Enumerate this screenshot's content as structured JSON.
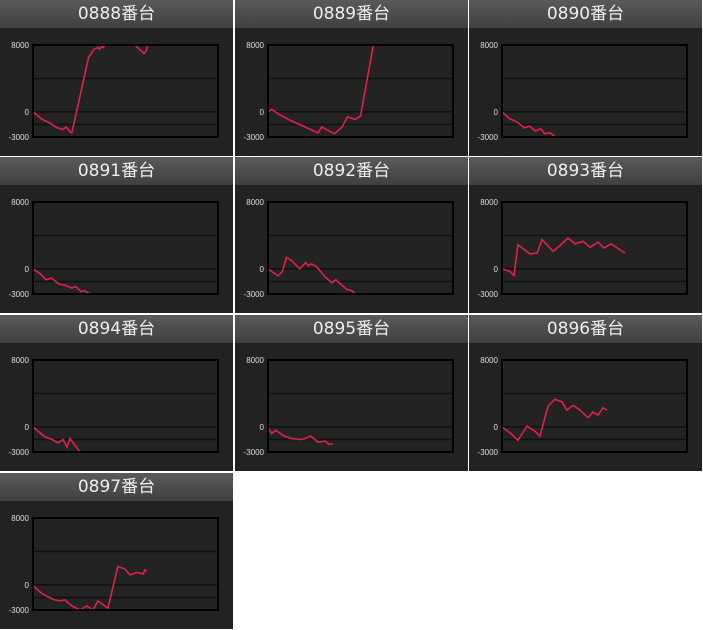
{
  "chart_data": [
    {
      "type": "line",
      "title": "0888番台",
      "ylim": [
        -3000,
        8000
      ],
      "xlim": [
        0,
        100
      ],
      "yticks": [
        "8000",
        "0",
        "-3000"
      ],
      "gridlines": [
        4000,
        0,
        -1500
      ],
      "color": "#e0204a",
      "x": [
        0,
        5,
        9,
        13,
        16,
        18,
        20,
        21,
        25,
        28,
        30,
        33,
        35,
        36,
        37,
        38,
        39,
        40,
        54,
        55,
        60,
        61,
        62
      ],
      "y": [
        0,
        -900,
        -1300,
        -1900,
        -2100,
        -1800,
        -2400,
        -2500,
        1500,
        4500,
        6500,
        7500,
        7700,
        7500,
        7800,
        7700,
        8000,
        9500,
        9500,
        8000,
        7000,
        7200,
        8000
      ]
    },
    {
      "type": "line",
      "title": "0889番台",
      "ylim": [
        -3000,
        8000
      ],
      "xlim": [
        0,
        100
      ],
      "yticks": [
        "8000",
        "0",
        "-3000"
      ],
      "gridlines": [
        4000,
        0,
        -1500
      ],
      "color": "#e0204a",
      "x": [
        0,
        2,
        6,
        12,
        17,
        22,
        27,
        29,
        33,
        36,
        40,
        43,
        47,
        50,
        57
      ],
      "y": [
        0,
        300,
        -300,
        -1000,
        -1500,
        -2000,
        -2500,
        -1800,
        -2300,
        -2600,
        -1800,
        -600,
        -900,
        -500,
        8000
      ]
    },
    {
      "type": "line",
      "title": "0890番台",
      "ylim": [
        -3000,
        8000
      ],
      "xlim": [
        0,
        100
      ],
      "yticks": [
        "8000",
        "0",
        "-3000"
      ],
      "gridlines": [
        4000,
        0,
        -1500
      ],
      "color": "#e0204a",
      "x": [
        0,
        4,
        8,
        12,
        15,
        18,
        21,
        23,
        26,
        29
      ],
      "y": [
        0,
        -800,
        -1200,
        -1900,
        -1700,
        -2300,
        -2000,
        -2600,
        -2500,
        -3000
      ]
    },
    {
      "type": "line",
      "title": "0891番台",
      "ylim": [
        -3000,
        8000
      ],
      "xlim": [
        0,
        100
      ],
      "yticks": [
        "8000",
        "0",
        "-3000"
      ],
      "gridlines": [
        4000,
        0,
        -1500
      ],
      "color": "#e0204a",
      "x": [
        0,
        4,
        7,
        10,
        14,
        18,
        21,
        23,
        26,
        28,
        31
      ],
      "y": [
        0,
        -600,
        -1300,
        -1100,
        -1800,
        -2000,
        -2300,
        -2100,
        -2700,
        -2600,
        -3000
      ]
    },
    {
      "type": "line",
      "title": "0892番台",
      "ylim": [
        -3000,
        8000
      ],
      "xlim": [
        0,
        100
      ],
      "yticks": [
        "8000",
        "0",
        "-3000"
      ],
      "gridlines": [
        4000,
        0,
        -1500
      ],
      "color": "#e0204a",
      "x": [
        0,
        5.4,
        7.8,
        10,
        12.7,
        17.2,
        20.4,
        21.9,
        23.5,
        26.2,
        30.7,
        34.4,
        36.7,
        42.5,
        45.2,
        47.6
      ],
      "y": [
        0,
        -840,
        -320,
        1360,
        1000,
        0,
        760,
        400,
        600,
        280,
        -920,
        -1640,
        -1320,
        -2440,
        -2600,
        -3000
      ]
    },
    {
      "type": "line",
      "title": "0893番台",
      "ylim": [
        -3000,
        8000
      ],
      "xlim": [
        0,
        100
      ],
      "yticks": [
        "8000",
        "0",
        "-3000"
      ],
      "gridlines": [
        4000,
        0,
        -1500
      ],
      "color": "#e0204a",
      "x": [
        0,
        4.3,
        6.5,
        8.6,
        15,
        19,
        21.6,
        27.6,
        31.4,
        35.7,
        39.5,
        43.8,
        47.6,
        51.9,
        55.1,
        58.9,
        66.5
      ],
      "y": [
        0,
        -300,
        -800,
        2900,
        1800,
        1900,
        3500,
        2100,
        2800,
        3700,
        3000,
        3300,
        2600,
        3200,
        2500,
        3000,
        1900
      ]
    },
    {
      "type": "line",
      "title": "0894番台",
      "ylim": [
        -3000,
        8000
      ],
      "xlim": [
        0,
        100
      ],
      "yticks": [
        "8000",
        "0",
        "-3000"
      ],
      "gridlines": [
        4000,
        0,
        -1500
      ],
      "color": "#e0204a",
      "x": [
        0,
        6.5,
        10.3,
        13.5,
        16.2,
        18.4,
        20,
        25.4
      ],
      "y": [
        0,
        -1200,
        -1500,
        -1900,
        -1500,
        -2400,
        -1400,
        -3000
      ]
    },
    {
      "type": "line",
      "title": "0895番台",
      "ylim": [
        -3000,
        8000
      ],
      "xlim": [
        0,
        100
      ],
      "yticks": [
        "8000",
        "0",
        "-3000"
      ],
      "gridlines": [
        4000,
        0,
        -1500
      ],
      "color": "#e0204a",
      "x": [
        0,
        2,
        4,
        9,
        13,
        17.6,
        20,
        23,
        27,
        31,
        33,
        35
      ],
      "y": [
        0,
        -800,
        -400,
        -1100,
        -1400,
        -1500,
        -1400,
        -1100,
        -1800,
        -1700,
        -2100,
        -2000
      ]
    },
    {
      "type": "line",
      "title": "0896番台",
      "ylim": [
        -3000,
        8000
      ],
      "xlim": [
        0,
        100
      ],
      "yticks": [
        "8000",
        "0",
        "-3000"
      ],
      "gridlines": [
        4000,
        0,
        -1500
      ],
      "color": "#e0204a",
      "x": [
        0,
        4.3,
        8.6,
        13.5,
        17.8,
        20.5,
        24.9,
        28.6,
        32.4,
        35.1,
        38.4,
        42.2,
        46.5,
        49.2,
        51.9,
        54.6,
        56.8
      ],
      "y": [
        0,
        -700,
        -1600,
        100,
        -500,
        -1100,
        2500,
        3300,
        3000,
        2000,
        2600,
        2000,
        1100,
        1800,
        1400,
        2300,
        2000
      ]
    },
    {
      "type": "line",
      "title": "0897番台",
      "ylim": [
        -3000,
        8000
      ],
      "xlim": [
        0,
        100
      ],
      "yticks": [
        "8000",
        "0",
        "-3000"
      ],
      "gridlines": [
        4000,
        0,
        -1500
      ],
      "color": "#e0204a",
      "x": [
        0,
        1,
        4,
        7.6,
        11.9,
        14.6,
        17.3,
        21,
        25.4,
        29.2,
        32.4,
        35.1,
        40.5,
        45.9,
        49.7,
        52.4,
        56.2,
        59.5,
        60.5,
        61.6
      ],
      "y": [
        0,
        -300,
        -900,
        -1400,
        -1800,
        -1900,
        -1800,
        -2500,
        -3000,
        -2500,
        -3000,
        -1900,
        -2800,
        2200,
        1900,
        1200,
        1500,
        1300,
        1800,
        1700
      ]
    }
  ]
}
